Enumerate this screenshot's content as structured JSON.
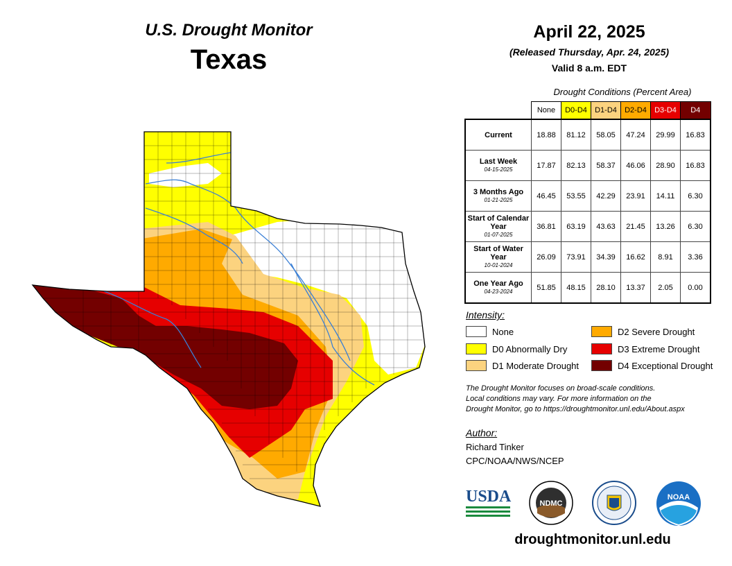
{
  "header": {
    "monitor_title": "U.S. Drought Monitor",
    "state": "Texas",
    "date": "April 22, 2025",
    "released": "(Released Thursday, Apr. 24, 2025)",
    "valid": "Valid 8 a.m. EDT"
  },
  "table": {
    "caption": "Drought Conditions (Percent Area)",
    "columns": [
      {
        "label": "None",
        "bg": "#ffffff",
        "fg": "#000000"
      },
      {
        "label": "D0-D4",
        "bg": "#ffff00",
        "fg": "#000000"
      },
      {
        "label": "D1-D4",
        "bg": "#fcd37f",
        "fg": "#000000"
      },
      {
        "label": "D2-D4",
        "bg": "#ffaa00",
        "fg": "#000000"
      },
      {
        "label": "D3-D4",
        "bg": "#e60000",
        "fg": "#ffffff"
      },
      {
        "label": "D4",
        "bg": "#730000",
        "fg": "#ffffff"
      }
    ],
    "rows": [
      {
        "label": "Current",
        "date": "",
        "values": [
          "18.88",
          "81.12",
          "58.05",
          "47.24",
          "29.99",
          "16.83"
        ]
      },
      {
        "label": "Last Week",
        "date": "04-15-2025",
        "values": [
          "17.87",
          "82.13",
          "58.37",
          "46.06",
          "28.90",
          "16.83"
        ]
      },
      {
        "label": "3 Months Ago",
        "date": "01-21-2025",
        "values": [
          "46.45",
          "53.55",
          "42.29",
          "23.91",
          "14.11",
          "6.30"
        ]
      },
      {
        "label": "Start of Calendar Year",
        "date": "01-07-2025",
        "values": [
          "36.81",
          "63.19",
          "43.63",
          "21.45",
          "13.26",
          "6.30"
        ]
      },
      {
        "label": "Start of Water Year",
        "date": "10-01-2024",
        "values": [
          "26.09",
          "73.91",
          "34.39",
          "16.62",
          "8.91",
          "3.36"
        ]
      },
      {
        "label": "One Year Ago",
        "date": "04-23-2024",
        "values": [
          "51.85",
          "48.15",
          "28.10",
          "13.37",
          "2.05",
          "0.00"
        ]
      }
    ]
  },
  "legend": {
    "title": "Intensity:",
    "items": [
      {
        "label": "None",
        "color": "#ffffff"
      },
      {
        "label": "D0 Abnormally Dry",
        "color": "#ffff00"
      },
      {
        "label": "D1 Moderate Drought",
        "color": "#fcd37f"
      },
      {
        "label": "D2 Severe Drought",
        "color": "#ffaa00"
      },
      {
        "label": "D3 Extreme Drought",
        "color": "#e60000"
      },
      {
        "label": "D4 Exceptional Drought",
        "color": "#730000"
      }
    ]
  },
  "disclaimer": {
    "line1": "The Drought Monitor focuses on broad-scale conditions.",
    "line2": "Local conditions may vary. For more information on the",
    "line3": "Drought Monitor, go to https://droughtmonitor.unl.edu/About.aspx"
  },
  "author": {
    "title": "Author:",
    "name": "Richard Tinker",
    "org": "CPC/NOAA/NWS/NCEP"
  },
  "logos": {
    "usda": "USDA",
    "ndmc": "NDMC",
    "noaa": "NOAA"
  },
  "website": "droughtmonitor.unl.edu"
}
